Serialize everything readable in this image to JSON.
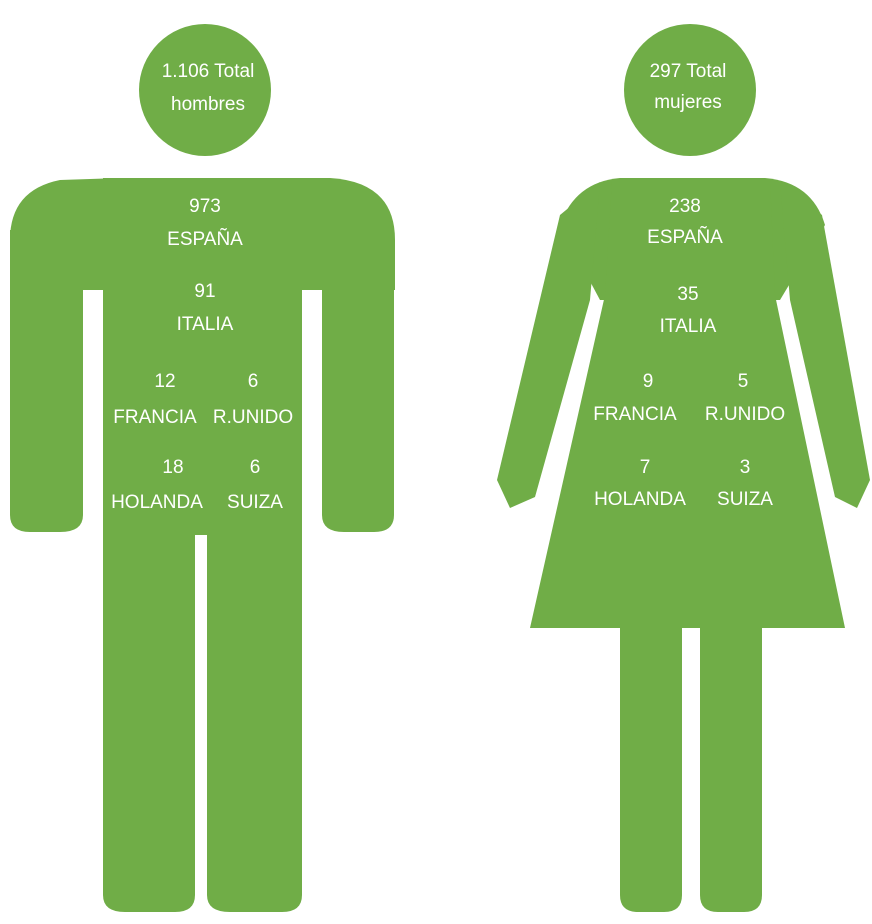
{
  "figures": [
    {
      "head": [
        "1.106 Total",
        "hombres"
      ],
      "countries": [
        {
          "value": 973,
          "name": "ESPAÑA"
        },
        {
          "value": 91,
          "name": "ITALIA"
        },
        {
          "value": 12,
          "name": "FRANCIA"
        },
        {
          "value": 6,
          "name": "R.UNIDO"
        },
        {
          "value": 18,
          "name": "HOLANDA"
        },
        {
          "value": 6,
          "name": "SUIZA"
        }
      ]
    },
    {
      "head": [
        "297 Total",
        "mujeres"
      ],
      "countries": [
        {
          "value": 238,
          "name": "ESPAÑA"
        },
        {
          "value": 35,
          "name": "ITALIA"
        },
        {
          "value": 9,
          "name": "FRANCIA"
        },
        {
          "value": 5,
          "name": "R.UNIDO"
        },
        {
          "value": 7,
          "name": "HOLANDA"
        },
        {
          "value": 3,
          "name": "SUIZA"
        }
      ]
    }
  ]
}
